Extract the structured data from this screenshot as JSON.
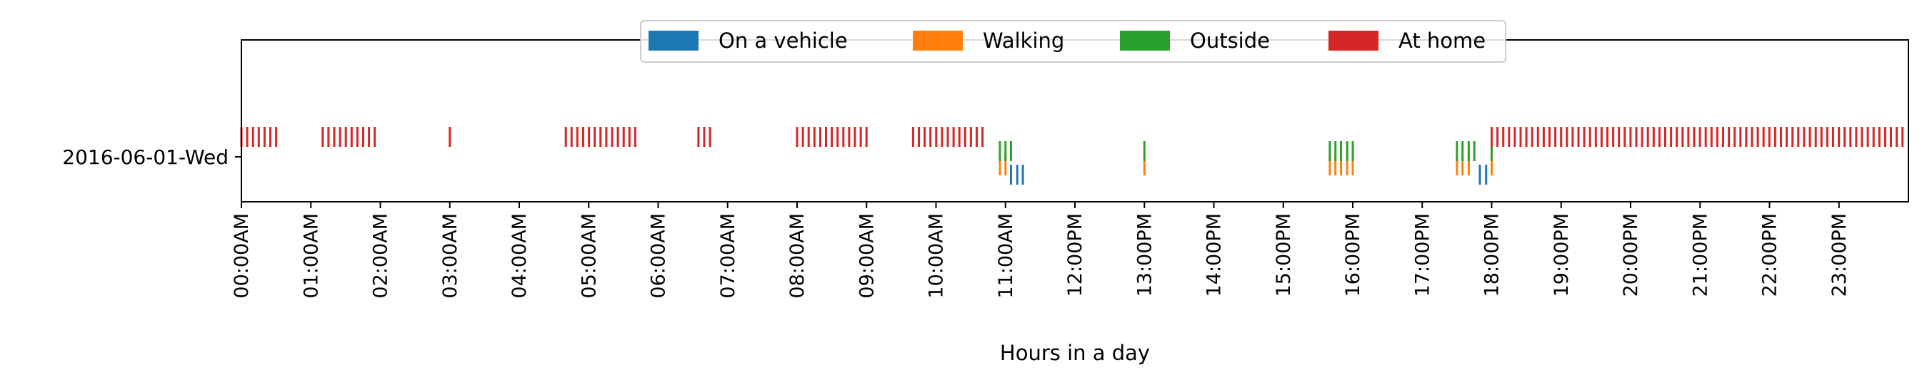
{
  "chart_data": {
    "type": "event-timeline",
    "xlabel": "Hours in a day",
    "ylabel": "",
    "xlim": [
      0,
      24
    ],
    "x_ticks": [
      {
        "h": 0,
        "label": "00:00AM"
      },
      {
        "h": 1,
        "label": "01:00AM"
      },
      {
        "h": 2,
        "label": "02:00AM"
      },
      {
        "h": 3,
        "label": "03:00AM"
      },
      {
        "h": 4,
        "label": "04:00AM"
      },
      {
        "h": 5,
        "label": "05:00AM"
      },
      {
        "h": 6,
        "label": "06:00AM"
      },
      {
        "h": 7,
        "label": "07:00AM"
      },
      {
        "h": 8,
        "label": "08:00AM"
      },
      {
        "h": 9,
        "label": "09:00AM"
      },
      {
        "h": 10,
        "label": "10:00AM"
      },
      {
        "h": 11,
        "label": "11:00AM"
      },
      {
        "h": 12,
        "label": "12:00PM"
      },
      {
        "h": 13,
        "label": "13:00PM"
      },
      {
        "h": 14,
        "label": "14:00PM"
      },
      {
        "h": 15,
        "label": "15:00PM"
      },
      {
        "h": 16,
        "label": "16:00PM"
      },
      {
        "h": 17,
        "label": "17:00PM"
      },
      {
        "h": 18,
        "label": "18:00PM"
      },
      {
        "h": 19,
        "label": "19:00PM"
      },
      {
        "h": 20,
        "label": "20:00PM"
      },
      {
        "h": 21,
        "label": "21:00PM"
      },
      {
        "h": 22,
        "label": "22:00PM"
      },
      {
        "h": 23,
        "label": "23:00PM"
      }
    ],
    "y_categories": [
      "2016-06-01-Wed"
    ],
    "legend_position": "top-center",
    "legend_columns": 4,
    "grid": false,
    "series": [
      {
        "name": "On a vehicle",
        "color": "#1f77b4",
        "row_offset": -0.25,
        "times": [
          11.08,
          11.17,
          11.25,
          17.83,
          17.92
        ]
      },
      {
        "name": "Walking",
        "color": "#ff7f0e",
        "row_offset": -0.12,
        "times": [
          10.92,
          11.0,
          13.0,
          15.67,
          15.75,
          15.83,
          15.92,
          16.0,
          17.5,
          17.58,
          17.67,
          18.0
        ]
      },
      {
        "name": "Outside",
        "color": "#2ca02c",
        "row_offset": 0.08,
        "times": [
          10.92,
          11.0,
          11.08,
          13.0,
          15.67,
          15.75,
          15.83,
          15.92,
          16.0,
          17.5,
          17.58,
          17.67,
          17.75,
          18.0
        ]
      },
      {
        "name": "At home",
        "color": "#d62728",
        "row_offset": 0.28,
        "segments": [
          [
            0.0,
            0.5
          ],
          [
            1.17,
            2.0
          ],
          [
            3.0,
            3.08
          ],
          [
            4.67,
            5.67
          ],
          [
            6.58,
            6.75
          ],
          [
            8.0,
            9.0
          ],
          [
            9.67,
            10.75
          ],
          [
            18.0,
            23.92
          ]
        ],
        "step": 0.0833
      }
    ]
  }
}
